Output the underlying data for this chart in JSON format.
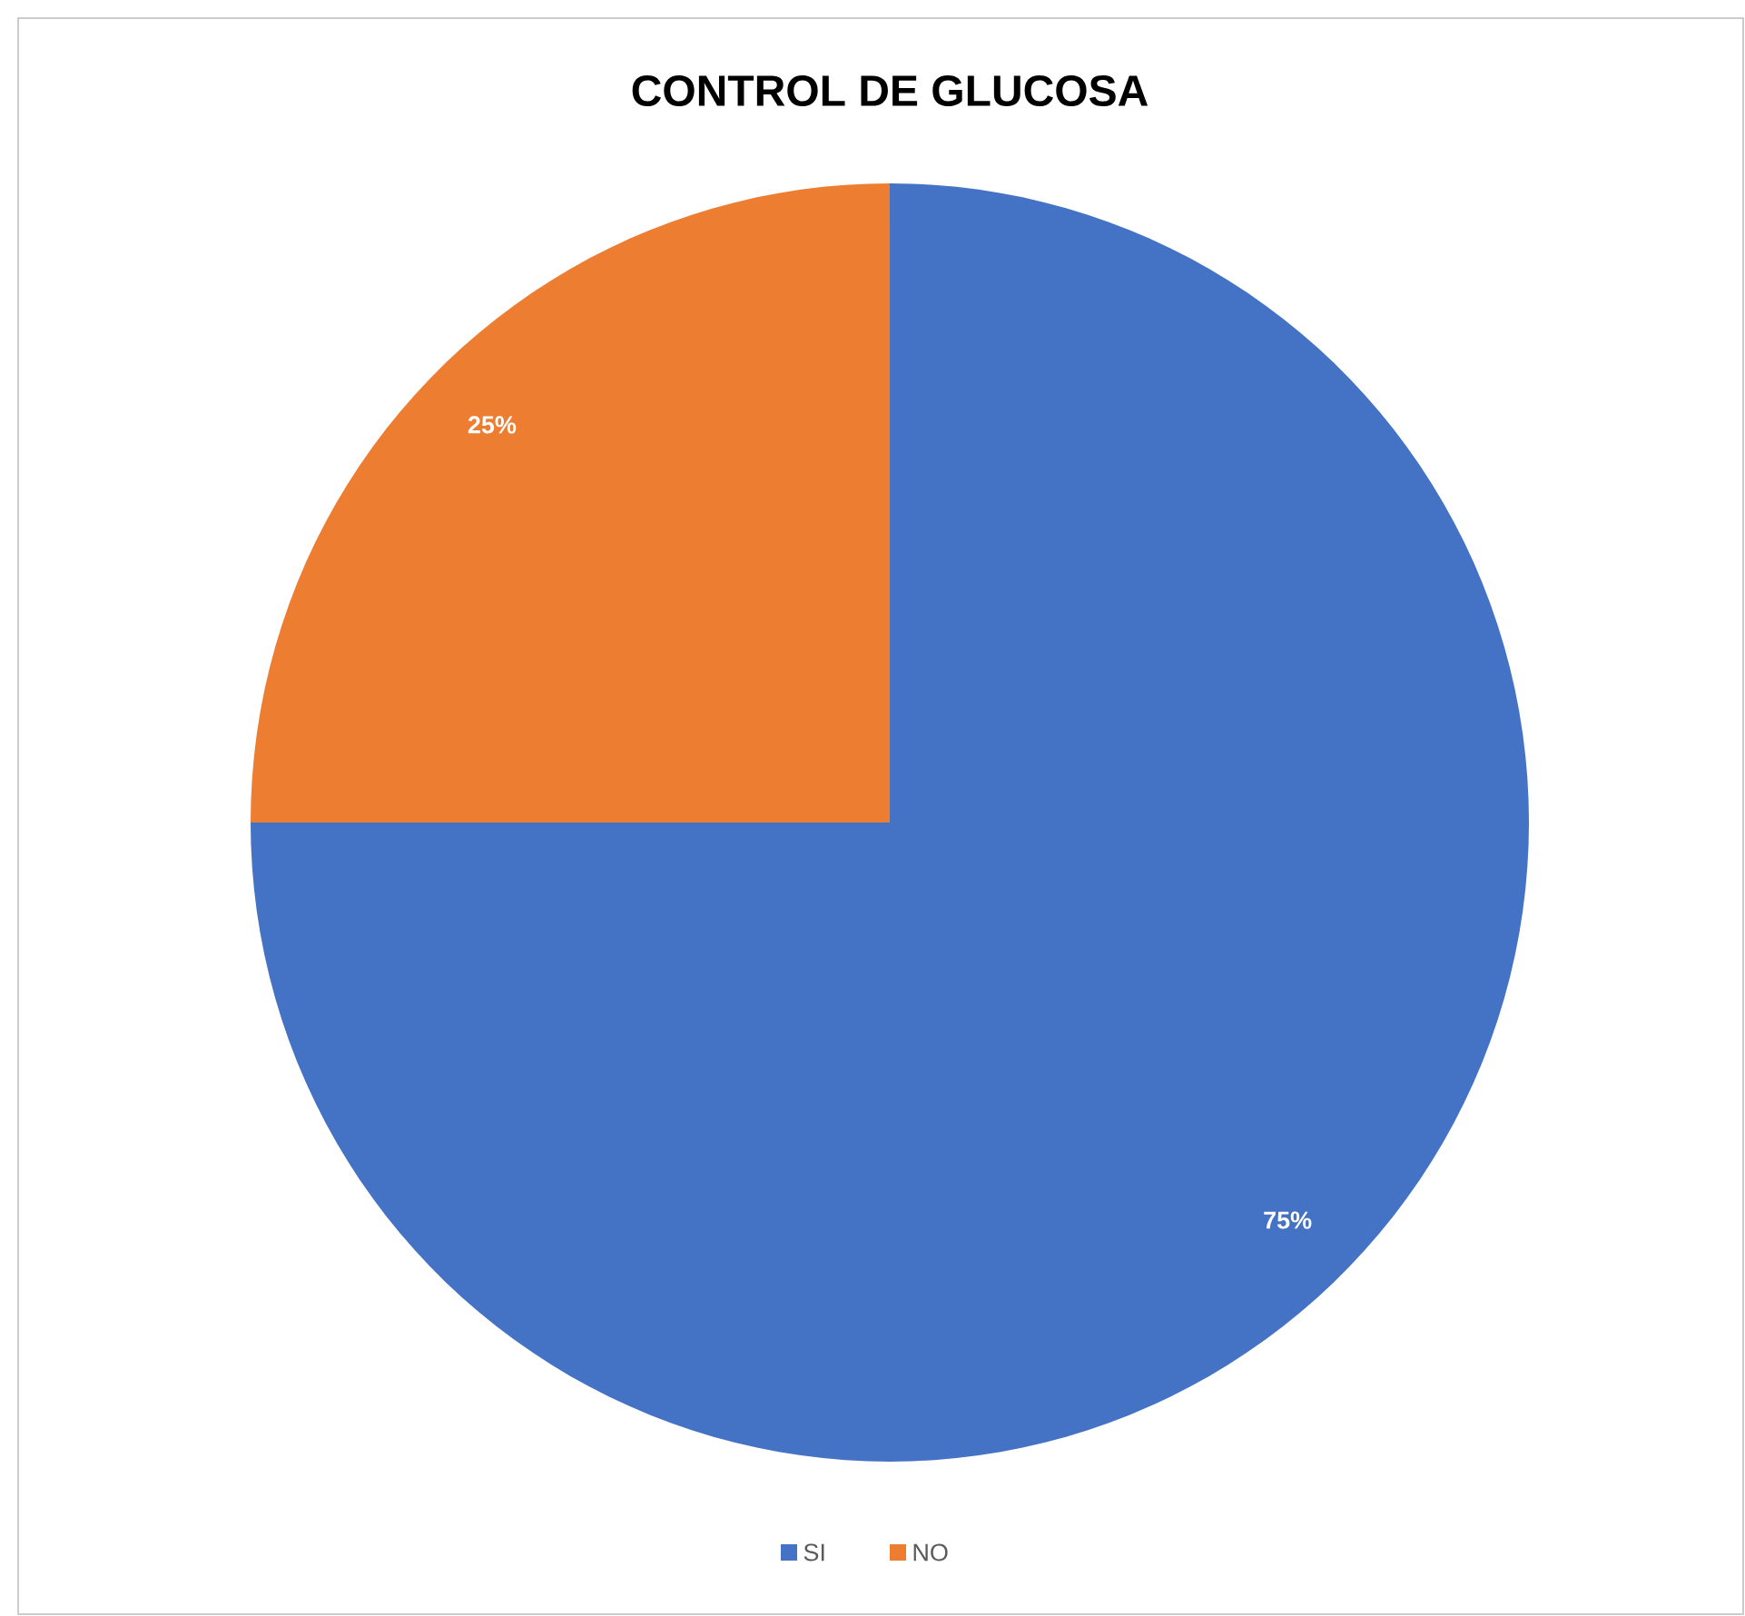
{
  "chart_data": {
    "type": "pie",
    "title": "CONTROL DE GLUCOSA",
    "categories": [
      "SI",
      "NO"
    ],
    "values": [
      75,
      25
    ],
    "colors": [
      "#4472c4",
      "#ed7d31"
    ],
    "value_labels": [
      "75%",
      "25%"
    ],
    "legend": "bottom"
  }
}
